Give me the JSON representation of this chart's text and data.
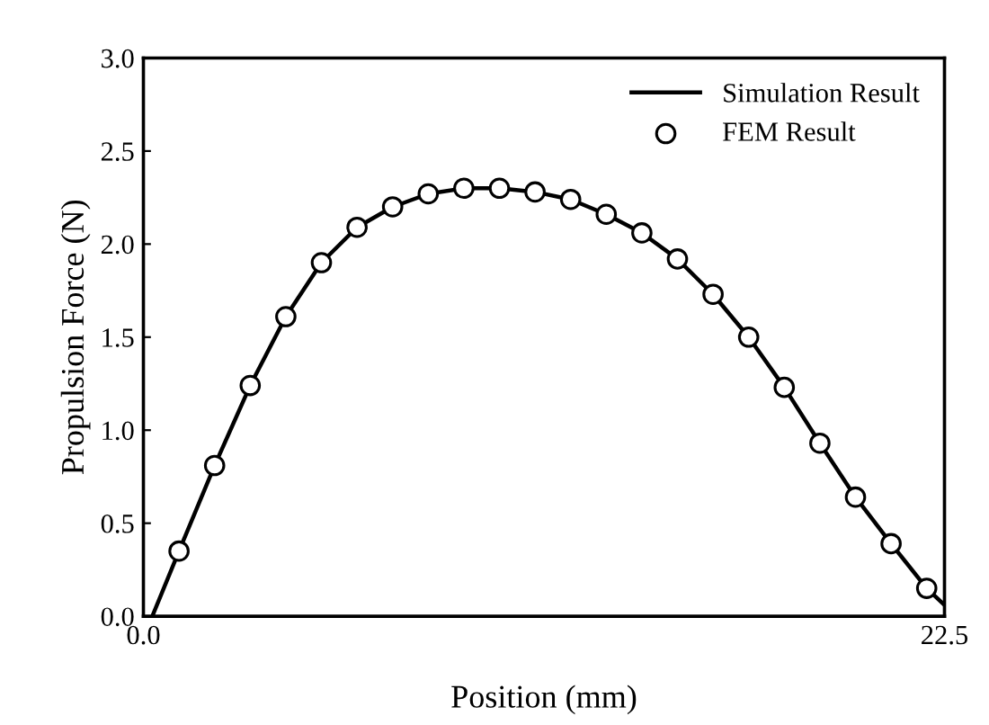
{
  "chart_data": {
    "type": "line",
    "xlabel": "Position (mm)",
    "ylabel": "Propulsion Force (N)",
    "xlim": [
      0,
      22.5
    ],
    "xticks": [
      {
        "value": 0,
        "label": "0.0"
      },
      {
        "value": 22.5,
        "label": "22.5"
      }
    ],
    "ylim": [
      0,
      3
    ],
    "yticks": [
      {
        "value": 0,
        "label": "0.0"
      },
      {
        "value": 0.5,
        "label": "0.5"
      },
      {
        "value": 1,
        "label": "1.0"
      },
      {
        "value": 1.5,
        "label": "1.5"
      },
      {
        "value": 2,
        "label": "2.0"
      },
      {
        "value": 2.5,
        "label": "2.5"
      },
      {
        "value": 3,
        "label": "3.0"
      }
    ],
    "legend": "top right",
    "grid": false,
    "series": [
      {
        "name": "Simulation Result",
        "color": "#000000",
        "marker": "none",
        "line_style": "solid",
        "x": [
          0.25,
          1,
          2,
          3,
          4,
          5,
          6,
          7,
          8,
          9,
          10,
          11,
          12,
          13,
          14,
          15,
          16,
          17,
          18,
          19,
          20,
          21,
          22,
          22.5
        ],
        "values": [
          0,
          0.35,
          0.81,
          1.24,
          1.61,
          1.9,
          2.09,
          2.2,
          2.27,
          2.3,
          2.3,
          2.28,
          2.24,
          2.16,
          2.06,
          1.92,
          1.73,
          1.5,
          1.23,
          0.93,
          0.64,
          0.39,
          0.15,
          0.06
        ]
      },
      {
        "name": "FEM Result",
        "type": "scatter",
        "color": "#000000",
        "marker": "circle",
        "x": [
          1,
          2,
          3,
          4,
          5,
          6,
          7,
          8,
          9,
          10,
          11,
          12,
          13,
          14,
          15,
          16,
          17,
          18,
          19,
          20,
          21,
          22
        ],
        "values": [
          0.35,
          0.81,
          1.24,
          1.61,
          1.9,
          2.09,
          2.2,
          2.27,
          2.3,
          2.3,
          2.28,
          2.24,
          2.16,
          2.06,
          1.92,
          1.73,
          1.5,
          1.23,
          0.93,
          0.64,
          0.39,
          0.15
        ]
      }
    ]
  }
}
